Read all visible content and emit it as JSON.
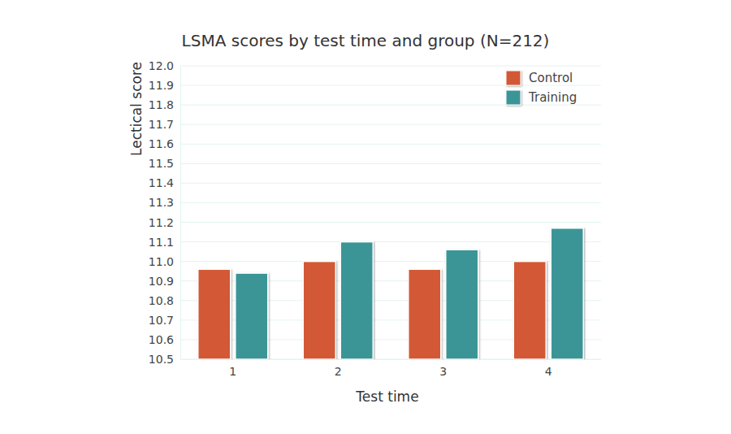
{
  "chart_data": {
    "type": "bar",
    "title": "LSMA scores by test time and group (N=212)",
    "x_label": "Test time",
    "y_label": "Lectical score",
    "categories": [
      "1",
      "2",
      "3",
      "4"
    ],
    "series": [
      {
        "name": "Control",
        "color": "#d35934",
        "values": [
          10.96,
          11.0,
          10.96,
          11.0
        ]
      },
      {
        "name": "Training",
        "color": "#3a9597",
        "values": [
          10.94,
          11.1,
          11.06,
          11.17
        ]
      }
    ],
    "ylim": [
      10.5,
      12.0
    ],
    "yticks": [
      10.5,
      10.6,
      10.7,
      10.8,
      10.9,
      {
        "value": 11,
        "label": "11.0"
      },
      11.1,
      11.2,
      11.3,
      11.4,
      11.5,
      11.6,
      11.7,
      11.8,
      11.9,
      {
        "value": 12,
        "label": "12.0"
      }
    ],
    "grid": true,
    "legend": "top-right"
  }
}
